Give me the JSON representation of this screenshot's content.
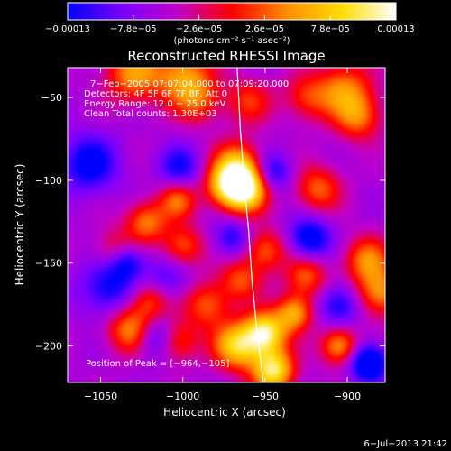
{
  "chart_data": {
    "type": "heatmap",
    "title": "Reconstructed RHESSI Image",
    "xlabel": "Heliocentric X (arcsec)",
    "ylabel": "Heliocentric Y (arcsec)",
    "xlim": [
      -1070,
      -877
    ],
    "ylim": [
      -222,
      -32
    ],
    "x_ticks": [
      -1050,
      -1000,
      -950,
      -900
    ],
    "x_tick_labels": [
      "−1050",
      "−1000",
      "−950",
      "−900"
    ],
    "y_ticks": [
      -50,
      -100,
      -150,
      -200
    ],
    "y_tick_labels": [
      "−50",
      "−100",
      "−150",
      "−200"
    ],
    "colorbar": {
      "min": -0.00013,
      "max": 0.00013,
      "tick_values": [
        -0.00013,
        -7.8e-05,
        -2.6e-05,
        2.6e-05,
        7.8e-05,
        0.00013
      ],
      "tick_labels": [
        "−0.00013",
        "−7.8e−05",
        "−2.6e−05",
        "2.6e−05",
        "7.8e−05",
        "0.00013"
      ],
      "units_label": "(photons cm⁻² s⁻¹ asec⁻²)",
      "colormap": [
        "#0000ff",
        "#7a00ff",
        "#c000c8",
        "#ff0000",
        "#ff8c00",
        "#ffdc00",
        "#ffffff"
      ]
    },
    "info_lines": [
      "7−Feb−2005 07:07:04.000 to 07:09:20.000",
      "Detectors: 4F 5F 6F 7F 8F, Att 0",
      "Energy Range: 12.0 − 25.0 keV",
      "Clean     Total counts: 1.30E+03"
    ],
    "peak_label": "Position of Peak = [−964,−105]",
    "peak": {
      "x": -964,
      "y": -105
    },
    "limb_curve": [
      [
        -967,
        -32
      ],
      [
        -965,
        -70
      ],
      [
        -962,
        -110
      ],
      [
        -960,
        -130
      ],
      [
        -958,
        -160
      ],
      [
        -955,
        -190
      ],
      [
        -951,
        -222
      ]
    ],
    "features": [
      {
        "x": -963,
        "y": -105,
        "amp": 1.0,
        "r": 10
      },
      {
        "x": -967,
        "y": -90,
        "amp": 0.55,
        "r": 10
      },
      {
        "x": -975,
        "y": -103,
        "amp": 0.45,
        "r": 9
      },
      {
        "x": -1000,
        "y": -37,
        "amp": 0.55,
        "r": 12
      },
      {
        "x": -1030,
        "y": -36,
        "amp": 0.55,
        "r": 12
      },
      {
        "x": -990,
        "y": -52,
        "amp": 0.35,
        "r": 10
      },
      {
        "x": -960,
        "y": -52,
        "amp": 0.35,
        "r": 10
      },
      {
        "x": -902,
        "y": -45,
        "amp": 0.5,
        "r": 12
      },
      {
        "x": -893,
        "y": -62,
        "amp": 0.45,
        "r": 10
      },
      {
        "x": -925,
        "y": -50,
        "amp": 0.35,
        "r": 10
      },
      {
        "x": -1003,
        "y": -112,
        "amp": 0.45,
        "r": 8
      },
      {
        "x": -1022,
        "y": -125,
        "amp": 0.5,
        "r": 9
      },
      {
        "x": -1000,
        "y": -140,
        "amp": 0.45,
        "r": 9
      },
      {
        "x": -1040,
        "y": -143,
        "amp": 0.45,
        "r": 9
      },
      {
        "x": -1020,
        "y": -172,
        "amp": 0.45,
        "r": 9
      },
      {
        "x": -1032,
        "y": -190,
        "amp": 0.55,
        "r": 10
      },
      {
        "x": -1004,
        "y": -197,
        "amp": 0.5,
        "r": 9
      },
      {
        "x": -985,
        "y": -175,
        "amp": 0.45,
        "r": 10
      },
      {
        "x": -950,
        "y": -142,
        "amp": 0.45,
        "r": 9
      },
      {
        "x": -965,
        "y": -160,
        "amp": 0.4,
        "r": 9
      },
      {
        "x": -918,
        "y": -105,
        "amp": 0.45,
        "r": 10
      },
      {
        "x": -925,
        "y": -158,
        "amp": 0.45,
        "r": 9
      },
      {
        "x": -888,
        "y": -148,
        "amp": 0.5,
        "r": 10
      },
      {
        "x": -932,
        "y": -180,
        "amp": 0.6,
        "r": 8
      },
      {
        "x": -950,
        "y": -192,
        "amp": 0.85,
        "r": 9
      },
      {
        "x": -967,
        "y": -200,
        "amp": 0.75,
        "r": 10
      },
      {
        "x": -945,
        "y": -215,
        "amp": 0.85,
        "r": 9
      },
      {
        "x": -905,
        "y": -200,
        "amp": 0.6,
        "r": 8
      },
      {
        "x": -880,
        "y": -168,
        "amp": 0.55,
        "r": 10
      },
      {
        "x": -1057,
        "y": -90,
        "amp": -0.45,
        "r": 12
      },
      {
        "x": -1045,
        "y": -165,
        "amp": -0.4,
        "r": 12
      },
      {
        "x": -1035,
        "y": -148,
        "amp": -0.55,
        "r": 8
      },
      {
        "x": -1015,
        "y": -195,
        "amp": -0.45,
        "r": 9
      },
      {
        "x": -1002,
        "y": -92,
        "amp": -0.35,
        "r": 9
      },
      {
        "x": -923,
        "y": -135,
        "amp": -0.5,
        "r": 9
      },
      {
        "x": -945,
        "y": -95,
        "amp": -0.4,
        "r": 8
      },
      {
        "x": -887,
        "y": -210,
        "amp": -0.65,
        "r": 8
      },
      {
        "x": -905,
        "y": -175,
        "amp": -0.4,
        "r": 9
      },
      {
        "x": -970,
        "y": -135,
        "amp": -0.35,
        "r": 8
      },
      {
        "x": -1010,
        "y": -160,
        "amp": -0.3,
        "r": 10
      }
    ],
    "timestamp": "6−Jul−2013 21:42"
  },
  "colors": {
    "background": "#000000",
    "foreground": "#ffffff",
    "base_level": "#5a1a8c"
  }
}
